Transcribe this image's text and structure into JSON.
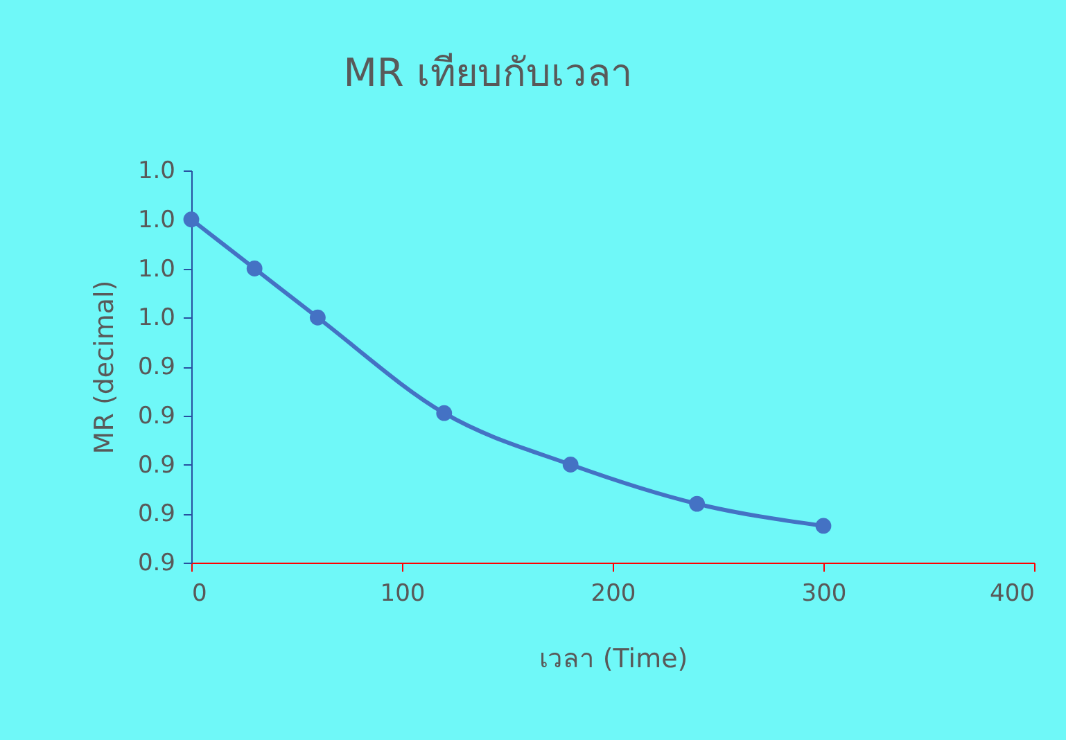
{
  "chart_data": {
    "type": "line",
    "title": "MR เทียบกับเวลา",
    "xlabel": "เวลา (Time)",
    "ylabel": "MR (decimal)",
    "x": [
      0,
      30,
      60,
      120,
      180,
      240,
      300
    ],
    "series": [
      {
        "color": "#4472c4",
        "values": [
          1.0,
          0.98,
          0.96,
          0.921,
          0.9,
          0.884,
          0.875
        ]
      }
    ],
    "xlim": [
      0,
      400
    ],
    "xticks": [
      0,
      100,
      200,
      300,
      400
    ],
    "ylim": [
      0.86,
      1.02
    ],
    "yticks": [
      {
        "value": 0.86,
        "label": "0.9"
      },
      {
        "value": 0.88,
        "label": "0.9"
      },
      {
        "value": 0.9,
        "label": "0.9"
      },
      {
        "value": 0.92,
        "label": "0.9"
      },
      {
        "value": 0.94,
        "label": "0.9"
      },
      {
        "value": 0.96,
        "label": "1.0"
      },
      {
        "value": 0.98,
        "label": "1.0"
      },
      {
        "value": 1.0,
        "label": "1.0"
      },
      {
        "value": 1.02,
        "label": "1.0"
      }
    ],
    "marker": "circle",
    "line_style": "solid"
  }
}
